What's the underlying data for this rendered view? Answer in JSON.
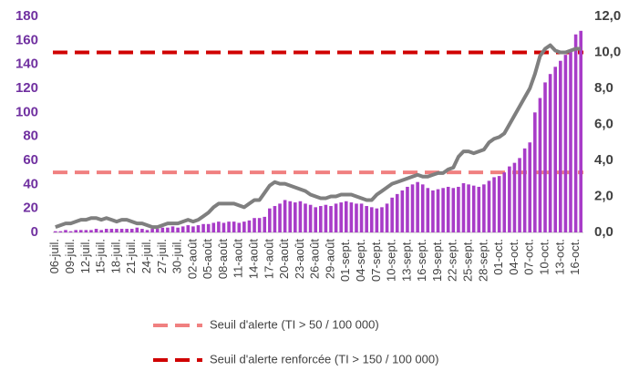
{
  "chart_data": {
    "type": "bar_line",
    "categories": [
      "06-juil.",
      null,
      null,
      "09-juil.",
      null,
      null,
      "12-juil.",
      null,
      null,
      "15-juil.",
      null,
      null,
      "18-juil.",
      null,
      null,
      "21-juil.",
      null,
      null,
      "24-juil.",
      null,
      null,
      "27-juil.",
      null,
      null,
      "30-juil.",
      null,
      null,
      "02-août",
      null,
      null,
      "05-août",
      null,
      null,
      "08-août",
      null,
      null,
      "11-août",
      null,
      null,
      "14-août",
      null,
      null,
      "17-août",
      null,
      null,
      "20-août",
      null,
      null,
      "23-août",
      null,
      null,
      "26-août",
      null,
      null,
      "29-août",
      null,
      null,
      "01-sept.",
      null,
      null,
      "04-sept.",
      null,
      null,
      "07-sept.",
      null,
      null,
      "10-sept.",
      null,
      null,
      "13-sept.",
      null,
      null,
      "16-sept.",
      null,
      null,
      "19-sept.",
      null,
      null,
      "22-sept.",
      null,
      null,
      "25-sept.",
      null,
      null,
      "28-sept.",
      null,
      null,
      "01-oct.",
      null,
      null,
      "04-oct.",
      null,
      null,
      "07-oct.",
      null,
      null,
      "10-oct.",
      null,
      null,
      "13-oct.",
      null,
      null,
      "16-oct.",
      null
    ],
    "series": [
      {
        "color": "#a83cc8",
        "values": [
          1,
          1,
          2,
          1,
          2,
          2,
          2,
          2,
          3,
          2,
          3,
          3,
          3,
          3,
          3,
          3,
          4,
          3,
          2,
          3,
          3,
          4,
          4,
          5,
          4,
          5,
          6,
          5,
          6,
          7,
          7,
          8,
          9,
          8,
          9,
          9,
          8,
          9,
          10,
          12,
          12,
          13,
          20,
          22,
          24,
          27,
          26,
          25,
          26,
          24,
          23,
          21,
          22,
          23,
          22,
          24,
          25,
          26,
          25,
          24,
          24,
          22,
          21,
          20,
          21,
          24,
          29,
          32,
          35,
          38,
          40,
          42,
          40,
          37,
          35,
          36,
          37,
          38,
          37,
          38,
          41,
          40,
          39,
          38,
          40,
          43,
          46,
          47,
          50,
          55,
          58,
          62,
          70,
          75,
          100,
          112,
          125,
          132,
          138,
          143,
          148,
          152,
          165,
          168
        ]
      },
      {
        "color": "#7f7f7f",
        "axis": "y2",
        "values": [
          0.3,
          0.4,
          0.5,
          0.5,
          0.6,
          0.7,
          0.7,
          0.8,
          0.8,
          0.7,
          0.8,
          0.7,
          0.6,
          0.7,
          0.7,
          0.6,
          0.5,
          0.5,
          0.4,
          0.3,
          0.3,
          0.4,
          0.5,
          0.5,
          0.5,
          0.6,
          0.7,
          0.6,
          0.7,
          0.9,
          1.1,
          1.4,
          1.6,
          1.6,
          1.6,
          1.6,
          1.5,
          1.4,
          1.6,
          1.8,
          1.8,
          2.2,
          2.6,
          2.8,
          2.7,
          2.7,
          2.6,
          2.5,
          2.4,
          2.3,
          2.1,
          2.0,
          1.9,
          1.9,
          2.0,
          2.0,
          2.1,
          2.1,
          2.1,
          2.0,
          1.9,
          1.8,
          1.8,
          2.1,
          2.3,
          2.5,
          2.7,
          2.8,
          2.9,
          3.0,
          3.1,
          3.2,
          3.1,
          3.1,
          3.2,
          3.3,
          3.3,
          3.5,
          3.6,
          4.2,
          4.5,
          4.5,
          4.4,
          4.5,
          4.6,
          5.0,
          5.2,
          5.3,
          5.5,
          6.0,
          6.5,
          7.0,
          7.5,
          8.0,
          8.8,
          9.8,
          10.2,
          10.4,
          10.1,
          10.0,
          10.0,
          10.1,
          10.2,
          10.2
        ]
      }
    ],
    "reference_lines": [
      {
        "name": "Seuil d'alerte (TI > 50 / 100 000)",
        "value": 50,
        "color": "#f08080"
      },
      {
        "name": "Seuil d'alerte renforcée (TI > 150 / 100 000)",
        "value": 150,
        "color": "#d00000"
      }
    ],
    "ylim": [
      0,
      180
    ],
    "yticks": [
      0,
      20,
      40,
      60,
      80,
      100,
      120,
      140,
      160,
      180
    ],
    "y2lim": [
      0,
      12
    ],
    "y2ticks": [
      {
        "value": 0,
        "label": "0,0"
      },
      {
        "value": 2,
        "label": "2,0"
      },
      {
        "value": 4,
        "label": "4,0"
      },
      {
        "value": 6,
        "label": "6,0"
      },
      {
        "value": 8,
        "label": "8,0"
      },
      {
        "value": 10,
        "label": "10,0"
      },
      {
        "value": 12,
        "label": "12,0"
      }
    ],
    "legend": "bottom"
  }
}
